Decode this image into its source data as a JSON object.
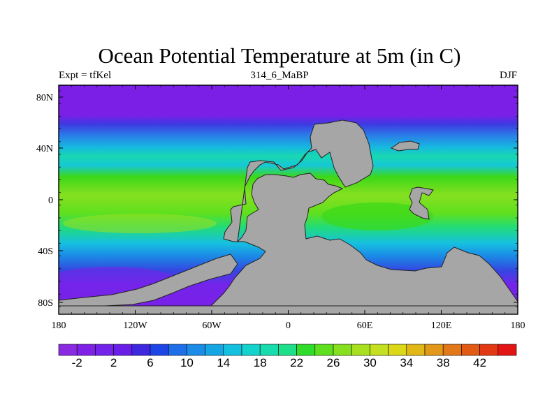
{
  "title": "Ocean Potential Temperature at 5m (in C)",
  "subtitle_left": "Expt = tfKel",
  "subtitle_center": "314_6_MaBP",
  "subtitle_right": "DJF",
  "lat_ticks": [
    "80N",
    "40N",
    "0",
    "40S",
    "80S"
  ],
  "lon_ticks": [
    "180",
    "120W",
    "60W",
    "0",
    "60E",
    "120E",
    "180"
  ],
  "colorbar": {
    "labels": [
      "-2",
      "2",
      "6",
      "10",
      "14",
      "18",
      "22",
      "26",
      "30",
      "34",
      "38",
      "42"
    ],
    "colors": [
      "#8a2be2",
      "#7f22e6",
      "#7424ea",
      "#6a1fe8",
      "#3d28e0",
      "#1e46e6",
      "#1f6fe8",
      "#1c8ce6",
      "#16a6e4",
      "#14c0e0",
      "#14d2cc",
      "#16dcae",
      "#1ee08a",
      "#32dc2a",
      "#5ee01e",
      "#86e020",
      "#a8e020",
      "#c4e020",
      "#dcd818",
      "#e2b818",
      "#e29818",
      "#e27818",
      "#e25a14",
      "#e23814",
      "#e21414"
    ]
  },
  "colors": {
    "land": "#a6a6a6",
    "coast": "#222222",
    "cold": "#7b1fe6",
    "cool": "#2a62e6",
    "mid": "#18c8d8",
    "warm": "#3ad81a",
    "hot": "#9ae01e"
  }
}
